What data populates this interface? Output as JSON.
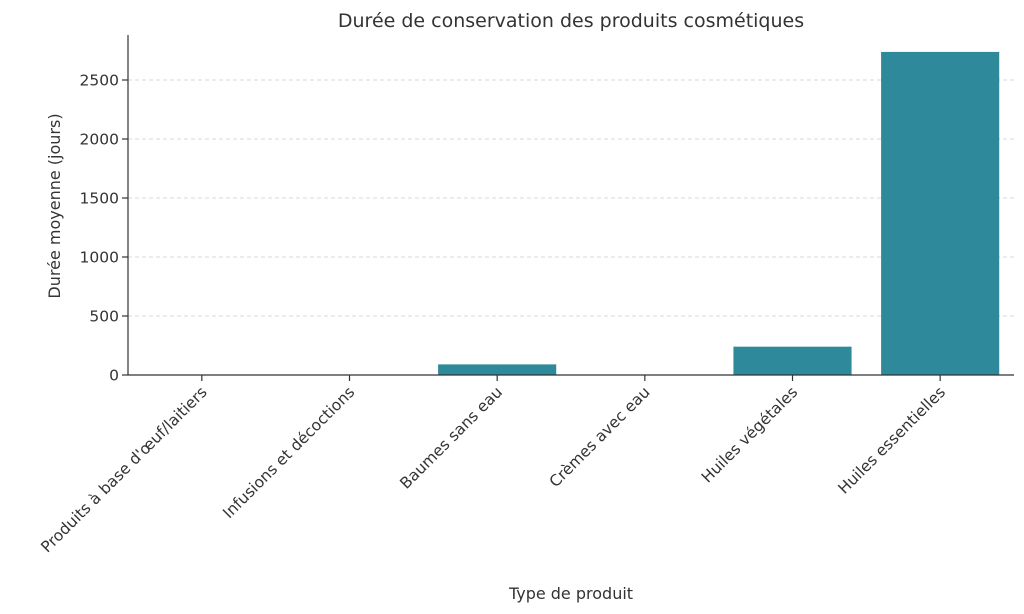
{
  "chart_data": {
    "type": "bar",
    "title": "Durée de conservation des produits cosmétiques",
    "xlabel": "Type de produit",
    "ylabel": "Durée moyenne (jours)",
    "categories": [
      "Produits à base d'œuf/laitiers",
      "Infusions et décoctions",
      "Baumes sans eau",
      "Crèmes avec eau",
      "Huiles végétales",
      "Huiles essentielles"
    ],
    "values": [
      2,
      2,
      90,
      3,
      240,
      2738
    ],
    "ylim": [
      0,
      2875
    ],
    "yticks": [
      0,
      500,
      1000,
      1500,
      2000,
      2500
    ],
    "grid": "horizontal dashed",
    "bar_color": "#2e8a9a"
  }
}
